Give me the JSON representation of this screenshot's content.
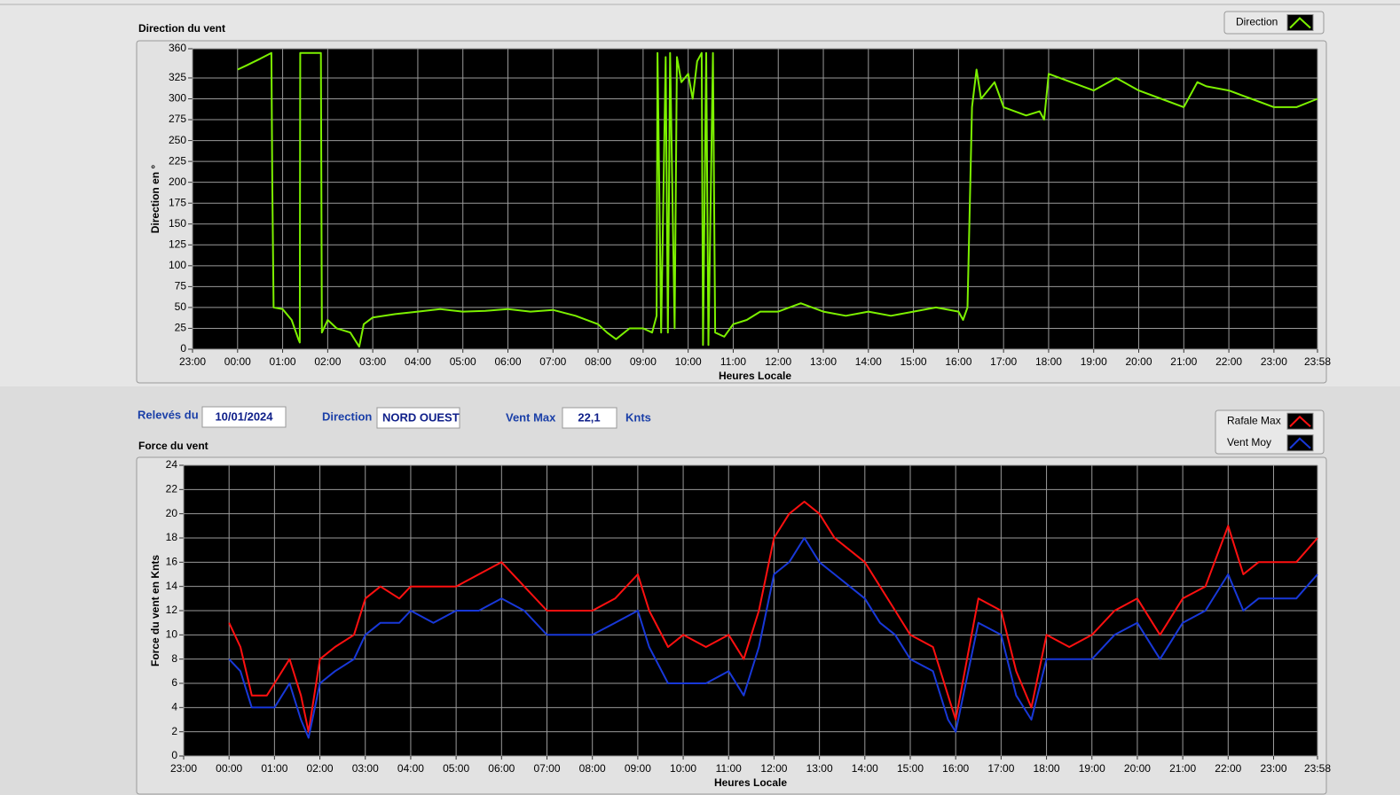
{
  "chart_data": [
    {
      "type": "line",
      "title": "Direction du vent",
      "ylabel": "Direction en °",
      "xlabel": "Heures Locale",
      "x": [
        1.0,
        1.2,
        1.5,
        1.75,
        1.77,
        1.8,
        2.0,
        2.2,
        2.35,
        2.38,
        2.39,
        2.85,
        2.87,
        3.0,
        3.2,
        3.5,
        3.7,
        3.8,
        4.0,
        4.5,
        5.0,
        5.5,
        6.0,
        6.5,
        7.0,
        7.5,
        8.0,
        8.5,
        9.0,
        9.2,
        9.4,
        9.7,
        10.0,
        10.2,
        10.3,
        10.32,
        10.4,
        10.5,
        10.55,
        10.6,
        10.7,
        10.75,
        10.85,
        11.0,
        11.1,
        11.2,
        11.3,
        11.33,
        11.4,
        11.45,
        11.55,
        11.6,
        11.8,
        12.0,
        12.3,
        12.6,
        13.0,
        13.5,
        14.0,
        14.5,
        15.0,
        15.5,
        16.0,
        16.5,
        17.0,
        17.1,
        17.2,
        17.3,
        17.4,
        17.5,
        17.8,
        18.0,
        18.5,
        18.8,
        18.9,
        19.0,
        19.5,
        20.0,
        20.5,
        21.0,
        21.5,
        22.0,
        22.3,
        22.5,
        23.0,
        23.5,
        24.0,
        24.5,
        24.967
      ],
      "series": [
        {
          "name": "Direction",
          "color": "#7cf000",
          "values": [
            335,
            340,
            348,
            355,
            200,
            50,
            48,
            35,
            12,
            8,
            355,
            355,
            20,
            35,
            25,
            20,
            3,
            30,
            38,
            42,
            45,
            48,
            45,
            46,
            48,
            45,
            47,
            40,
            30,
            20,
            12,
            25,
            25,
            20,
            40,
            355,
            20,
            350,
            20,
            355,
            25,
            350,
            320,
            330,
            300,
            345,
            355,
            5,
            355,
            5,
            355,
            20,
            15,
            30,
            35,
            45,
            45,
            55,
            45,
            40,
            45,
            40,
            45,
            50,
            45,
            35,
            50,
            290,
            335,
            300,
            320,
            290,
            280,
            285,
            275,
            330,
            320,
            310,
            325,
            310,
            300,
            290,
            320,
            315,
            310,
            300,
            290,
            290,
            300
          ]
        }
      ],
      "xlim": [
        0,
        24.967
      ],
      "xticks": [
        {
          "value": 0,
          "label": "23:00"
        },
        {
          "value": 1,
          "label": "00:00"
        },
        {
          "value": 2,
          "label": "01:00"
        },
        {
          "value": 3,
          "label": "02:00"
        },
        {
          "value": 4,
          "label": "03:00"
        },
        {
          "value": 5,
          "label": "04:00"
        },
        {
          "value": 6,
          "label": "05:00"
        },
        {
          "value": 7,
          "label": "06:00"
        },
        {
          "value": 8,
          "label": "07:00"
        },
        {
          "value": 9,
          "label": "08:00"
        },
        {
          "value": 10,
          "label": "09:00"
        },
        {
          "value": 11,
          "label": "10:00"
        },
        {
          "value": 12,
          "label": "11:00"
        },
        {
          "value": 13,
          "label": "12:00"
        },
        {
          "value": 14,
          "label": "13:00"
        },
        {
          "value": 15,
          "label": "14:00"
        },
        {
          "value": 16,
          "label": "15:00"
        },
        {
          "value": 17,
          "label": "16:00"
        },
        {
          "value": 18,
          "label": "17:00"
        },
        {
          "value": 19,
          "label": "18:00"
        },
        {
          "value": 20,
          "label": "19:00"
        },
        {
          "value": 21,
          "label": "20:00"
        },
        {
          "value": 22,
          "label": "21:00"
        },
        {
          "value": 23,
          "label": "22:00"
        },
        {
          "value": 24,
          "label": "23:00"
        },
        {
          "value": 24.967,
          "label": "23:58"
        }
      ],
      "ylim": [
        0,
        360
      ],
      "yticks": [
        0,
        25,
        50,
        75,
        100,
        125,
        150,
        175,
        200,
        225,
        250,
        275,
        300,
        325,
        360
      ],
      "grid": true,
      "legend": "top-right"
    },
    {
      "type": "line",
      "title": "Force du vent",
      "ylabel": "Force du vent en Knts",
      "xlabel": "Heures Locale",
      "x": [
        1,
        1.25,
        1.5,
        1.833,
        2,
        2.333,
        2.583,
        2.75,
        3,
        3.333,
        3.75,
        4,
        4.333,
        4.75,
        5,
        5.5,
        6,
        6.5,
        7,
        7.5,
        8,
        8.5,
        9,
        9.5,
        10,
        10.25,
        10.667,
        11,
        11.5,
        12,
        12.333,
        12.667,
        13,
        13.333,
        13.667,
        14,
        14.333,
        14.667,
        15,
        15.333,
        15.667,
        16,
        16.5,
        16.833,
        17,
        17.5,
        18,
        18.333,
        18.667,
        19,
        19.5,
        20,
        20.5,
        21,
        21.5,
        22,
        22.5,
        23,
        23.333,
        23.667,
        24,
        24.5,
        24.967
      ],
      "series": [
        {
          "name": "Rafale Max",
          "color": "#ff1010",
          "values": [
            11,
            9,
            5,
            5,
            6,
            8,
            5,
            2,
            8,
            9,
            10,
            13,
            14,
            13,
            14,
            14,
            14,
            15,
            16,
            14,
            12,
            12,
            12,
            13,
            15,
            12,
            9,
            10,
            9,
            10,
            8,
            12,
            18,
            20,
            21,
            20,
            18,
            17,
            16,
            14,
            12,
            10,
            9,
            5,
            3,
            13,
            12,
            7,
            4,
            10,
            9,
            10,
            12,
            13,
            10,
            13,
            14,
            19,
            15,
            16,
            16,
            16,
            18
          ]
        },
        {
          "name": "Vent Moy",
          "color": "#1838d8",
          "values": [
            8,
            7,
            4,
            4,
            4,
            6,
            3,
            1.5,
            6,
            7,
            8,
            10,
            11,
            11,
            12,
            11,
            12,
            12,
            13,
            12,
            10,
            10,
            10,
            11,
            12,
            9,
            6,
            6,
            6,
            7,
            5,
            9,
            15,
            16,
            18,
            16,
            15,
            14,
            13,
            11,
            10,
            8,
            7,
            3,
            2,
            11,
            10,
            5,
            3,
            8,
            8,
            8,
            10,
            11,
            8,
            11,
            12,
            15,
            12,
            13,
            13,
            13,
            15
          ]
        }
      ],
      "xlim": [
        0,
        24.967
      ],
      "xticks": [
        {
          "value": 0,
          "label": "23:00"
        },
        {
          "value": 1,
          "label": "00:00"
        },
        {
          "value": 2,
          "label": "01:00"
        },
        {
          "value": 3,
          "label": "02:00"
        },
        {
          "value": 4,
          "label": "03:00"
        },
        {
          "value": 5,
          "label": "04:00"
        },
        {
          "value": 6,
          "label": "05:00"
        },
        {
          "value": 7,
          "label": "06:00"
        },
        {
          "value": 8,
          "label": "07:00"
        },
        {
          "value": 9,
          "label": "08:00"
        },
        {
          "value": 10,
          "label": "09:00"
        },
        {
          "value": 11,
          "label": "10:00"
        },
        {
          "value": 12,
          "label": "11:00"
        },
        {
          "value": 13,
          "label": "12:00"
        },
        {
          "value": 14,
          "label": "13:00"
        },
        {
          "value": 15,
          "label": "14:00"
        },
        {
          "value": 16,
          "label": "15:00"
        },
        {
          "value": 17,
          "label": "16:00"
        },
        {
          "value": 18,
          "label": "17:00"
        },
        {
          "value": 19,
          "label": "18:00"
        },
        {
          "value": 20,
          "label": "19:00"
        },
        {
          "value": 21,
          "label": "20:00"
        },
        {
          "value": 22,
          "label": "21:00"
        },
        {
          "value": 23,
          "label": "22:00"
        },
        {
          "value": 24,
          "label": "23:00"
        },
        {
          "value": 24.967,
          "label": "23:58"
        }
      ],
      "ylim": [
        0,
        24
      ],
      "yticks": [
        0,
        2,
        4,
        6,
        8,
        10,
        12,
        14,
        16,
        18,
        20,
        22,
        24
      ],
      "grid": true,
      "legend": "top-right"
    }
  ],
  "form": {
    "date_label": "Relevés du",
    "date": "10/01/2024",
    "direction_label": "Direction",
    "direction": "NORD OUEST",
    "max_label": "Vent Max",
    "max": "22,1",
    "unit": "Knts"
  }
}
